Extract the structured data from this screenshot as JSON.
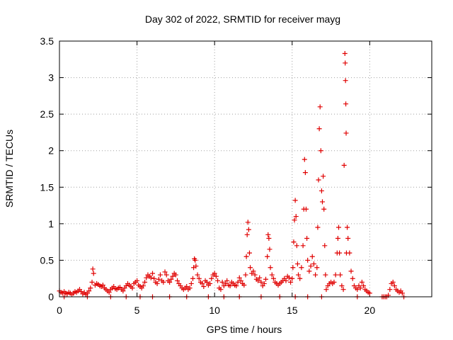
{
  "chart_data": {
    "type": "scatter",
    "title": "Day 302 of 2022, SRMTID for receiver mayg",
    "xlabel": "GPS time / hours",
    "ylabel": "SRMTID / TECUs",
    "xlim": [
      0,
      24
    ],
    "ylim": [
      0,
      3.5
    ],
    "xticks": [
      0,
      5,
      10,
      15,
      20
    ],
    "xtick_labels": [
      "0",
      "5",
      "10",
      "15",
      "20"
    ],
    "yticks": [
      0,
      0.5,
      1,
      1.5,
      2,
      2.5,
      3,
      3.5
    ],
    "ytick_labels": [
      "0",
      "0.5",
      "1",
      "1.5",
      "2",
      "2.5",
      "3",
      "3.5"
    ],
    "grid": true,
    "marker": "+",
    "color": "#e00000",
    "series": [
      {
        "name": "SRMTID",
        "points": [
          [
            0.0,
            0.08
          ],
          [
            0.1,
            0.06
          ],
          [
            0.2,
            0.05
          ],
          [
            0.3,
            0.07
          ],
          [
            0.4,
            0.05
          ],
          [
            0.5,
            0.04
          ],
          [
            0.6,
            0.06
          ],
          [
            0.7,
            0.05
          ],
          [
            0.8,
            0.03
          ],
          [
            0.9,
            0.05
          ],
          [
            1.0,
            0.07
          ],
          [
            1.1,
            0.06
          ],
          [
            1.2,
            0.08
          ],
          [
            1.3,
            0.1
          ],
          [
            1.4,
            0.07
          ],
          [
            1.5,
            0.04
          ],
          [
            1.6,
            0.06
          ],
          [
            1.7,
            0.03
          ],
          [
            1.8,
            0.05
          ],
          [
            1.9,
            0.08
          ],
          [
            2.0,
            0.12
          ],
          [
            2.1,
            0.2
          ],
          [
            2.15,
            0.38
          ],
          [
            2.2,
            0.32
          ],
          [
            2.3,
            0.16
          ],
          [
            2.4,
            0.18
          ],
          [
            2.5,
            0.17
          ],
          [
            2.6,
            0.15
          ],
          [
            2.7,
            0.14
          ],
          [
            2.8,
            0.16
          ],
          [
            2.9,
            0.12
          ],
          [
            3.0,
            0.1
          ],
          [
            3.1,
            0.08
          ],
          [
            3.2,
            0.06
          ],
          [
            3.3,
            0.1
          ],
          [
            3.4,
            0.12
          ],
          [
            3.5,
            0.14
          ],
          [
            3.6,
            0.11
          ],
          [
            3.7,
            0.1
          ],
          [
            3.8,
            0.12
          ],
          [
            3.9,
            0.13
          ],
          [
            4.0,
            0.1
          ],
          [
            4.1,
            0.08
          ],
          [
            4.2,
            0.12
          ],
          [
            4.3,
            0.15
          ],
          [
            4.4,
            0.18
          ],
          [
            4.5,
            0.16
          ],
          [
            4.6,
            0.14
          ],
          [
            4.7,
            0.12
          ],
          [
            4.8,
            0.18
          ],
          [
            4.9,
            0.2
          ],
          [
            5.0,
            0.22
          ],
          [
            5.1,
            0.16
          ],
          [
            5.2,
            0.14
          ],
          [
            5.3,
            0.12
          ],
          [
            5.4,
            0.15
          ],
          [
            5.5,
            0.2
          ],
          [
            5.6,
            0.26
          ],
          [
            5.7,
            0.3
          ],
          [
            5.8,
            0.28
          ],
          [
            5.9,
            0.26
          ],
          [
            6.0,
            0.32
          ],
          [
            6.1,
            0.25
          ],
          [
            6.2,
            0.2
          ],
          [
            6.3,
            0.18
          ],
          [
            6.4,
            0.24
          ],
          [
            6.5,
            0.3
          ],
          [
            6.6,
            0.22
          ],
          [
            6.7,
            0.2
          ],
          [
            6.8,
            0.34
          ],
          [
            6.9,
            0.3
          ],
          [
            7.0,
            0.22
          ],
          [
            7.1,
            0.2
          ],
          [
            7.2,
            0.24
          ],
          [
            7.3,
            0.28
          ],
          [
            7.4,
            0.32
          ],
          [
            7.5,
            0.3
          ],
          [
            7.6,
            0.22
          ],
          [
            7.7,
            0.18
          ],
          [
            7.8,
            0.15
          ],
          [
            7.9,
            0.12
          ],
          [
            8.0,
            0.1
          ],
          [
            8.1,
            0.12
          ],
          [
            8.2,
            0.14
          ],
          [
            8.3,
            0.1
          ],
          [
            8.4,
            0.12
          ],
          [
            8.5,
            0.18
          ],
          [
            8.6,
            0.25
          ],
          [
            8.65,
            0.4
          ],
          [
            8.7,
            0.52
          ],
          [
            8.75,
            0.5
          ],
          [
            8.8,
            0.42
          ],
          [
            8.9,
            0.3
          ],
          [
            9.0,
            0.25
          ],
          [
            9.1,
            0.2
          ],
          [
            9.2,
            0.18
          ],
          [
            9.3,
            0.14
          ],
          [
            9.4,
            0.22
          ],
          [
            9.5,
            0.2
          ],
          [
            9.6,
            0.16
          ],
          [
            9.7,
            0.18
          ],
          [
            9.8,
            0.25
          ],
          [
            9.9,
            0.3
          ],
          [
            10.0,
            0.32
          ],
          [
            10.1,
            0.28
          ],
          [
            10.2,
            0.22
          ],
          [
            10.3,
            0.12
          ],
          [
            10.4,
            0.1
          ],
          [
            10.5,
            0.2
          ],
          [
            10.6,
            0.15
          ],
          [
            10.7,
            0.18
          ],
          [
            10.8,
            0.22
          ],
          [
            10.9,
            0.16
          ],
          [
            11.0,
            0.15
          ],
          [
            11.1,
            0.2
          ],
          [
            11.2,
            0.18
          ],
          [
            11.3,
            0.16
          ],
          [
            11.4,
            0.15
          ],
          [
            11.5,
            0.2
          ],
          [
            11.6,
            0.26
          ],
          [
            11.7,
            0.22
          ],
          [
            11.8,
            0.18
          ],
          [
            11.9,
            0.16
          ],
          [
            12.0,
            0.3
          ],
          [
            12.05,
            0.55
          ],
          [
            12.1,
            0.85
          ],
          [
            12.15,
            1.02
          ],
          [
            12.2,
            0.92
          ],
          [
            12.25,
            0.6
          ],
          [
            12.3,
            0.4
          ],
          [
            12.4,
            0.32
          ],
          [
            12.5,
            0.35
          ],
          [
            12.6,
            0.3
          ],
          [
            12.7,
            0.24
          ],
          [
            12.8,
            0.22
          ],
          [
            12.9,
            0.26
          ],
          [
            13.0,
            0.2
          ],
          [
            13.1,
            0.15
          ],
          [
            13.2,
            0.18
          ],
          [
            13.3,
            0.24
          ],
          [
            13.4,
            0.55
          ],
          [
            13.45,
            0.85
          ],
          [
            13.5,
            0.8
          ],
          [
            13.55,
            0.65
          ],
          [
            13.6,
            0.4
          ],
          [
            13.7,
            0.3
          ],
          [
            13.8,
            0.25
          ],
          [
            13.9,
            0.2
          ],
          [
            14.0,
            0.18
          ],
          [
            14.1,
            0.16
          ],
          [
            14.2,
            0.18
          ],
          [
            14.3,
            0.2
          ],
          [
            14.4,
            0.22
          ],
          [
            14.5,
            0.25
          ],
          [
            14.6,
            0.22
          ],
          [
            14.7,
            0.28
          ],
          [
            14.8,
            0.26
          ],
          [
            14.9,
            0.2
          ],
          [
            15.0,
            0.25
          ],
          [
            15.05,
            0.4
          ],
          [
            15.1,
            0.75
          ],
          [
            15.15,
            1.05
          ],
          [
            15.2,
            1.32
          ],
          [
            15.25,
            1.1
          ],
          [
            15.3,
            0.7
          ],
          [
            15.35,
            0.45
          ],
          [
            15.4,
            0.3
          ],
          [
            15.5,
            0.25
          ],
          [
            15.6,
            0.4
          ],
          [
            15.7,
            0.7
          ],
          [
            15.75,
            1.2
          ],
          [
            15.8,
            1.88
          ],
          [
            15.85,
            1.7
          ],
          [
            15.9,
            1.2
          ],
          [
            15.95,
            0.8
          ],
          [
            16.0,
            0.5
          ],
          [
            16.1,
            0.35
          ],
          [
            16.2,
            0.42
          ],
          [
            16.3,
            0.55
          ],
          [
            16.4,
            0.45
          ],
          [
            16.5,
            0.3
          ],
          [
            16.6,
            0.4
          ],
          [
            16.65,
            0.95
          ],
          [
            16.7,
            1.6
          ],
          [
            16.75,
            2.3
          ],
          [
            16.8,
            2.6
          ],
          [
            16.85,
            2.0
          ],
          [
            16.9,
            1.45
          ],
          [
            16.95,
            1.3
          ],
          [
            17.0,
            1.65
          ],
          [
            17.05,
            1.2
          ],
          [
            17.1,
            0.7
          ],
          [
            17.15,
            0.3
          ],
          [
            17.2,
            0.1
          ],
          [
            17.3,
            0.15
          ],
          [
            17.4,
            0.18
          ],
          [
            17.5,
            0.2
          ],
          [
            17.6,
            0.18
          ],
          [
            17.7,
            0.2
          ],
          [
            17.8,
            0.3
          ],
          [
            17.9,
            0.6
          ],
          [
            17.95,
            0.8
          ],
          [
            18.0,
            0.95
          ],
          [
            18.05,
            0.6
          ],
          [
            18.1,
            0.3
          ],
          [
            18.2,
            0.15
          ],
          [
            18.3,
            0.1
          ],
          [
            18.35,
            1.8
          ],
          [
            18.4,
            3.33
          ],
          [
            18.42,
            3.2
          ],
          [
            18.44,
            2.96
          ],
          [
            18.46,
            2.64
          ],
          [
            18.48,
            2.24
          ],
          [
            18.5,
            0.6
          ],
          [
            18.55,
            0.95
          ],
          [
            18.6,
            0.8
          ],
          [
            18.7,
            0.6
          ],
          [
            18.8,
            0.35
          ],
          [
            18.9,
            0.25
          ],
          [
            19.0,
            0.15
          ],
          [
            19.1,
            0.12
          ],
          [
            19.2,
            0.1
          ],
          [
            19.3,
            0.15
          ],
          [
            19.4,
            0.12
          ],
          [
            19.5,
            0.2
          ],
          [
            19.6,
            0.15
          ],
          [
            19.7,
            0.1
          ],
          [
            19.8,
            0.08
          ],
          [
            19.9,
            0.06
          ],
          [
            20.0,
            0.05
          ],
          [
            20.8,
            0.0
          ],
          [
            20.9,
            0.0
          ],
          [
            21.0,
            0.0
          ],
          [
            21.1,
            0.0
          ],
          [
            21.2,
            0.02
          ],
          [
            21.3,
            0.1
          ],
          [
            21.4,
            0.18
          ],
          [
            21.5,
            0.2
          ],
          [
            21.6,
            0.15
          ],
          [
            21.7,
            0.1
          ],
          [
            21.8,
            0.08
          ],
          [
            21.9,
            0.06
          ],
          [
            22.0,
            0.08
          ],
          [
            22.1,
            0.05
          ],
          [
            0.3,
            0.0
          ],
          [
            1.8,
            0.0
          ],
          [
            3.3,
            0.0
          ],
          [
            4.3,
            0.0
          ],
          [
            5.2,
            0.0
          ],
          [
            6.0,
            0.0
          ],
          [
            7.1,
            0.0
          ],
          [
            8.2,
            0.0
          ],
          [
            9.6,
            0.0
          ],
          [
            10.6,
            0.0
          ],
          [
            11.6,
            0.0
          ],
          [
            13.0,
            0.0
          ],
          [
            14.2,
            0.0
          ],
          [
            15.2,
            0.0
          ],
          [
            16.0,
            0.0
          ],
          [
            16.9,
            0.0
          ],
          [
            19.2,
            0.0
          ],
          [
            22.2,
            0.0
          ]
        ]
      }
    ]
  }
}
